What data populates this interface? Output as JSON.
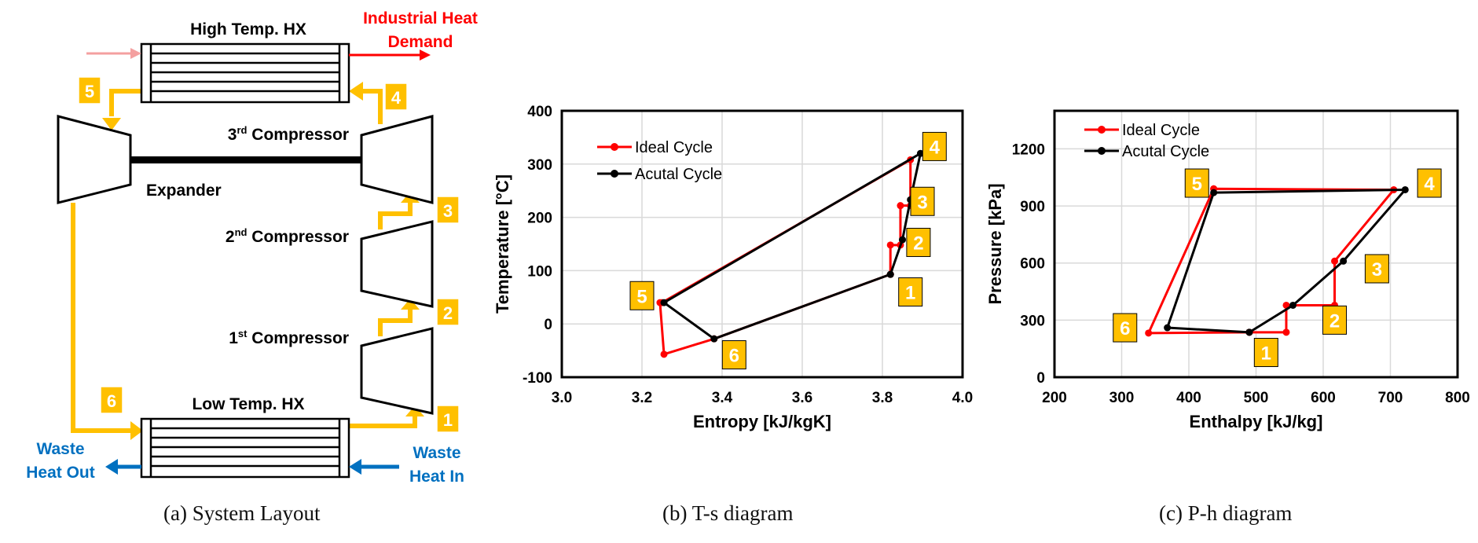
{
  "colors": {
    "flow": "#FFC000",
    "ideal": "#FF0000",
    "actual": "#000000",
    "hot_text": "#FF0000",
    "cold_text": "#0070C0",
    "hot_in_arrow": "#F4A0A0",
    "grid": "#D9D9D9",
    "state_box": "#FFC000"
  },
  "layout_panel": {
    "caption": "(a) System Layout",
    "high_hx_label": "High Temp.  HX",
    "low_hx_label": "Low Temp. HX",
    "industrial_heat_line1": "Industrial Heat",
    "industrial_heat_line2": "Demand",
    "waste_out_line1": "Waste",
    "waste_out_line2": "Heat Out",
    "waste_in_line1": "Waste",
    "waste_in_line2": "Heat In",
    "expander_label": "Expander",
    "compressors": [
      {
        "ordinal": "3",
        "suffix": "rd",
        "label": " Compressor"
      },
      {
        "ordinal": "2",
        "suffix": "nd",
        "label": " Compressor"
      },
      {
        "ordinal": "1",
        "suffix": "st",
        "label": " Compressor"
      }
    ],
    "states": [
      "1",
      "2",
      "3",
      "4",
      "5",
      "6"
    ]
  },
  "chart_data": [
    {
      "type": "line",
      "title": "",
      "caption": "(b) T-s diagram",
      "xlabel": "Entropy [kJ/kgK]",
      "ylabel": "Temperature [°C]",
      "xlim": [
        3.0,
        4.0
      ],
      "ylim": [
        -100,
        400
      ],
      "xticks": [
        3.0,
        3.2,
        3.4,
        3.6,
        3.8,
        4.0
      ],
      "xtick_labels": [
        "3.0",
        "3.2",
        "3.4",
        "3.6",
        "3.8",
        "4.0"
      ],
      "yticks": [
        -100,
        0,
        100,
        200,
        300,
        400
      ],
      "ytick_labels": [
        "-100",
        "0",
        "100",
        "200",
        "300",
        "400"
      ],
      "grid": true,
      "legend_position": "top-left",
      "series": [
        {
          "name": "Ideal Cycle",
          "x": [
            3.82,
            3.82,
            3.845,
            3.845,
            3.87,
            3.87,
            3.25,
            3.245,
            3.255,
            3.38,
            3.82
          ],
          "y": [
            93,
            148,
            148,
            222,
            222,
            308,
            40,
            40,
            -57,
            -28,
            93
          ]
        },
        {
          "name": "Acutal Cycle",
          "x": [
            3.82,
            3.85,
            3.87,
            3.895,
            3.255,
            3.38,
            3.82
          ],
          "y": [
            93,
            158,
            233,
            320,
            40,
            -28,
            93
          ]
        }
      ],
      "state_labels": [
        {
          "label": "1",
          "x": 3.87,
          "y": 60
        },
        {
          "label": "2",
          "x": 3.89,
          "y": 153
        },
        {
          "label": "3",
          "x": 3.9,
          "y": 230
        },
        {
          "label": "4",
          "x": 3.93,
          "y": 333
        },
        {
          "label": "5",
          "x": 3.2,
          "y": 53
        },
        {
          "label": "6",
          "x": 3.43,
          "y": -58
        }
      ]
    },
    {
      "type": "line",
      "title": "",
      "caption": "(c) P-h diagram",
      "xlabel": "Enthalpy [kJ/kg]",
      "ylabel": "Pressure [kPa]",
      "xlim": [
        200,
        800
      ],
      "ylim": [
        0,
        1400
      ],
      "xticks": [
        200,
        300,
        400,
        500,
        600,
        700,
        800
      ],
      "xtick_labels": [
        "200",
        "300",
        "400",
        "500",
        "600",
        "700",
        "800"
      ],
      "yticks": [
        0,
        300,
        600,
        900,
        1200
      ],
      "ytick_labels": [
        "0",
        "300",
        "600",
        "900",
        "1200"
      ],
      "grid": true,
      "legend_position": "top-left",
      "series": [
        {
          "name": "Ideal Cycle",
          "x": [
            490,
            545,
            545,
            617,
            617,
            705,
            437,
            437,
            340,
            490
          ],
          "y": [
            236,
            236,
            378,
            378,
            610,
            985,
            990,
            990,
            232,
            236
          ]
        },
        {
          "name": "Acutal Cycle",
          "x": [
            490,
            555,
            630,
            722,
            437,
            368,
            490
          ],
          "y": [
            236,
            378,
            610,
            985,
            970,
            260,
            236
          ]
        }
      ],
      "state_labels": [
        {
          "label": "1",
          "x": 515,
          "y": 130
        },
        {
          "label": "2",
          "x": 617,
          "y": 300
        },
        {
          "label": "3",
          "x": 680,
          "y": 570
        },
        {
          "label": "4",
          "x": 758,
          "y": 1020
        },
        {
          "label": "5",
          "x": 412,
          "y": 1020
        },
        {
          "label": "6",
          "x": 305,
          "y": 260
        }
      ]
    }
  ]
}
